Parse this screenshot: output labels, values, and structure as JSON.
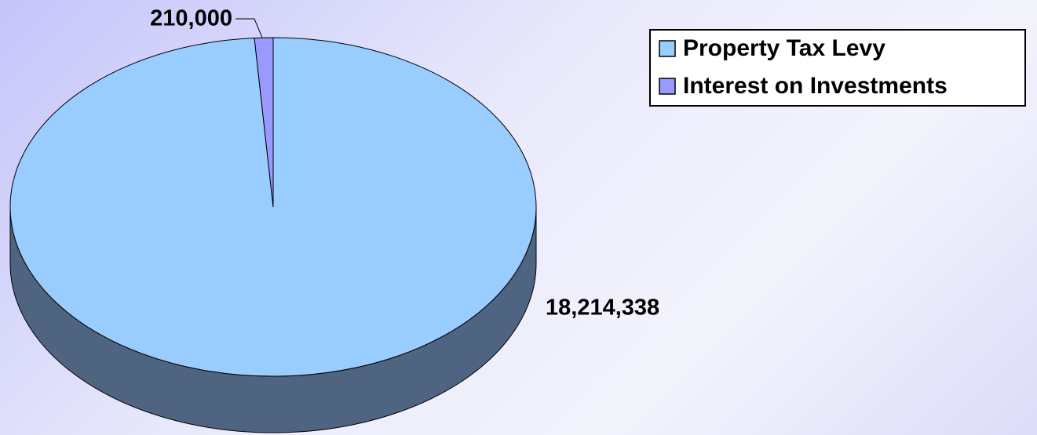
{
  "chart_data": {
    "type": "pie",
    "categories": [
      "Property Tax Levy",
      "Interest on Investments"
    ],
    "values": [
      18214338,
      210000
    ],
    "value_labels": [
      "18,214,338",
      "210,000"
    ],
    "colors": [
      "#99ccff",
      "#9999ff"
    ],
    "legend": "top-right"
  }
}
